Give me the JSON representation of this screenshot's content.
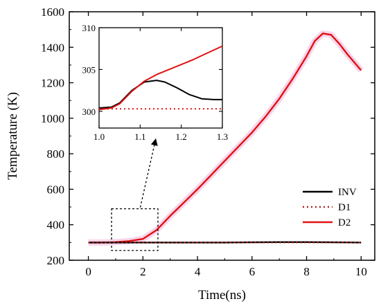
{
  "chart_data": [
    {
      "type": "line",
      "xlabel": "Time(ns)",
      "ylabel": "Temperature (K)",
      "xlim": [
        -0.7,
        10.5
      ],
      "ylim": [
        200,
        1600
      ],
      "xticks": [
        0,
        2,
        4,
        6,
        8,
        10
      ],
      "yticks": [
        200,
        400,
        600,
        800,
        1000,
        1200,
        1400,
        1600
      ],
      "xtick_labels": [
        "0",
        "2",
        "4",
        "6",
        "8",
        "10"
      ],
      "ytick_labels": [
        "200",
        "400",
        "600",
        "800",
        "1000",
        "1200",
        "1400",
        "1600"
      ],
      "legend_position": "bottom-right",
      "series": [
        {
          "name": "INV",
          "color": "#000000",
          "style": "solid",
          "x": [
            0,
            1,
            2,
            3,
            4,
            5,
            6,
            7,
            8,
            9,
            10
          ],
          "y": [
            300,
            300,
            300,
            300,
            300,
            300,
            301,
            302,
            302,
            301,
            300
          ]
        },
        {
          "name": "D1",
          "color": "#b22222",
          "style": "dotted",
          "x": [
            0,
            1,
            2,
            3,
            4,
            5,
            6,
            7,
            8,
            9,
            10
          ],
          "y": [
            300,
            300,
            300,
            300,
            300,
            300,
            300,
            300,
            300,
            300,
            300
          ]
        },
        {
          "name": "D2",
          "color": "#e01010",
          "style": "solid",
          "x": [
            0,
            0.5,
            1.0,
            1.5,
            2.0,
            2.5,
            3.0,
            3.5,
            4.0,
            4.5,
            5.0,
            5.5,
            6.0,
            6.5,
            7.0,
            7.5,
            8.0,
            8.3,
            8.6,
            8.9,
            9.2,
            9.5,
            10.0
          ],
          "y": [
            300,
            300,
            302,
            308,
            320,
            370,
            450,
            525,
            600,
            680,
            760,
            840,
            920,
            1010,
            1110,
            1225,
            1350,
            1435,
            1478,
            1470,
            1420,
            1360,
            1270
          ]
        }
      ],
      "zoom_box": {
        "x": [
          0.85,
          2.55
        ],
        "y": [
          255,
          490
        ]
      }
    },
    {
      "type": "line",
      "inset": true,
      "xlim": [
        1.0,
        1.3
      ],
      "ylim": [
        298,
        310
      ],
      "xticks": [
        1.0,
        1.1,
        1.2,
        1.3
      ],
      "yticks": [
        300,
        305,
        310
      ],
      "xtick_labels": [
        "1.0",
        "1.1",
        "1.2",
        "1.3"
      ],
      "ytick_labels": [
        "300",
        "305",
        "310"
      ],
      "series": [
        {
          "name": "INV",
          "color": "#000000",
          "style": "solid",
          "x": [
            1.0,
            1.03,
            1.05,
            1.08,
            1.11,
            1.14,
            1.16,
            1.19,
            1.22,
            1.25,
            1.28,
            1.3
          ],
          "y": [
            300.4,
            300.5,
            301.0,
            302.5,
            303.5,
            303.7,
            303.5,
            302.8,
            302.0,
            301.5,
            301.4,
            301.4
          ]
        },
        {
          "name": "D1",
          "color": "#e01010",
          "style": "dotted",
          "x": [
            1.0,
            1.3
          ],
          "y": [
            300.3,
            300.3
          ]
        },
        {
          "name": "D2",
          "color": "#e01010",
          "style": "solid",
          "x": [
            1.0,
            1.03,
            1.05,
            1.08,
            1.11,
            1.14,
            1.17,
            1.2,
            1.23,
            1.26,
            1.3
          ],
          "y": [
            300.2,
            300.4,
            300.9,
            302.4,
            303.6,
            304.4,
            305.0,
            305.6,
            306.2,
            306.9,
            307.8
          ]
        }
      ]
    }
  ]
}
